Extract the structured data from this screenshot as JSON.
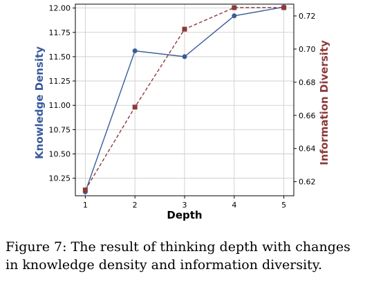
{
  "caption": "Figure 7: The result of thinking depth with changes in knowledge density and information diversity.",
  "chart_data": {
    "type": "line",
    "xlabel": "Depth",
    "x": [
      1,
      2,
      3,
      4,
      5
    ],
    "x_ticks": [
      "1",
      "2",
      "3",
      "4",
      "5"
    ],
    "xlim": [
      0.8,
      5.2
    ],
    "grid": true,
    "series": [
      {
        "name": "Knowledge Density",
        "axis": "left",
        "ylabel": "Knowledge Density",
        "values": [
          10.11,
          11.56,
          11.5,
          11.92,
          12.01
        ],
        "ylim": [
          10.07,
          12.04
        ],
        "y_ticks": [
          "10.25",
          "10.50",
          "10.75",
          "11.00",
          "11.25",
          "11.50",
          "11.75",
          "12.00"
        ],
        "y_tick_values": [
          10.25,
          10.5,
          10.75,
          11.0,
          11.25,
          11.5,
          11.75,
          12.0
        ],
        "color": "#3a5a9c",
        "marker": "circle",
        "line_style": "solid"
      },
      {
        "name": "Information Diversity",
        "axis": "right",
        "ylabel": "Information Diversity",
        "values": [
          0.615,
          0.665,
          0.712,
          0.725,
          0.725
        ],
        "ylim": [
          0.6115,
          0.7271
        ],
        "y_ticks": [
          "0.62",
          "0.64",
          "0.66",
          "0.68",
          "0.70",
          "0.72"
        ],
        "y_tick_values": [
          0.62,
          0.64,
          0.66,
          0.68,
          0.7,
          0.72
        ],
        "color": "#8b3a3a",
        "marker": "square",
        "line_style": "dashed"
      }
    ]
  }
}
